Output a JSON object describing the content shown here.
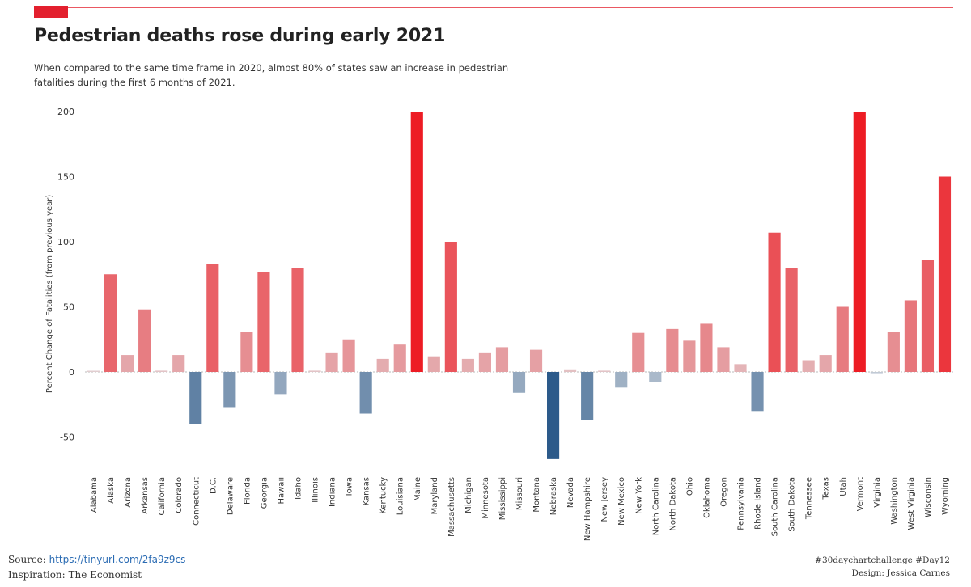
{
  "header": {
    "title": "Pedestrian deaths rose during early 2021",
    "subtitle": "When compared to the same time frame in 2020, almost 80% of states saw an increase in pedestrian fatalities during the first 6 months of 2021."
  },
  "footer": {
    "source_label": "Source:",
    "source_link": "https://tinyurl.com/2fa9z9cs",
    "inspiration": "Inspiration: The Economist",
    "hashtags": "#30daychartchallenge #Day12",
    "design": "Design: Jessica Carnes"
  },
  "colors": {
    "accent": "#e3202e",
    "positive": "#ed1c24",
    "negative": "#2c5a8a",
    "zero_line": "#bbbbbb"
  },
  "chart_data": {
    "type": "bar",
    "title": "Pedestrian deaths rose during early 2021",
    "ylabel": "Percent Change of Fatalities (from previous year)",
    "xlabel": "",
    "ylim": [
      -70,
      205
    ],
    "yticks": [
      200,
      150,
      100,
      50,
      0,
      -50
    ],
    "grid": false,
    "categories": [
      "Alabama",
      "Alaska",
      "Arizona",
      "Arkansas",
      "California",
      "Colorado",
      "Connecticut",
      "D.C.",
      "Delaware",
      "Florida",
      "Georgia",
      "Hawaii",
      "Idaho",
      "Illinois",
      "Indiana",
      "Iowa",
      "Kansas",
      "Kentucky",
      "Louisiana",
      "Maine",
      "Maryland",
      "Massachusetts",
      "Michigan",
      "Minnesota",
      "Mississippi",
      "Missouri",
      "Montana",
      "Nebraska",
      "Nevada",
      "New Hampshire",
      "New Jersey",
      "New Mexico",
      "New York",
      "North Carolina",
      "North Dakota",
      "Ohio",
      "Oklahoma",
      "Oregon",
      "Pennsylvania",
      "Rhode Island",
      "South Carolina",
      "South Dakota",
      "Tennessee",
      "Texas",
      "Utah",
      "Vermont",
      "Virginia",
      "Washington",
      "West Virginia",
      "Wisconsin",
      "Wyoming"
    ],
    "values": [
      0,
      75,
      13,
      48,
      1,
      13,
      -40,
      83,
      -27,
      31,
      77,
      -17,
      80,
      1,
      15,
      25,
      -32,
      10,
      21,
      200,
      12,
      100,
      10,
      15,
      19,
      -16,
      17,
      -67,
      2,
      -37,
      1,
      -12,
      30,
      -8,
      33,
      24,
      37,
      19,
      6,
      -30,
      107,
      80,
      9,
      13,
      50,
      200,
      -1,
      31,
      55,
      86,
      150
    ]
  }
}
